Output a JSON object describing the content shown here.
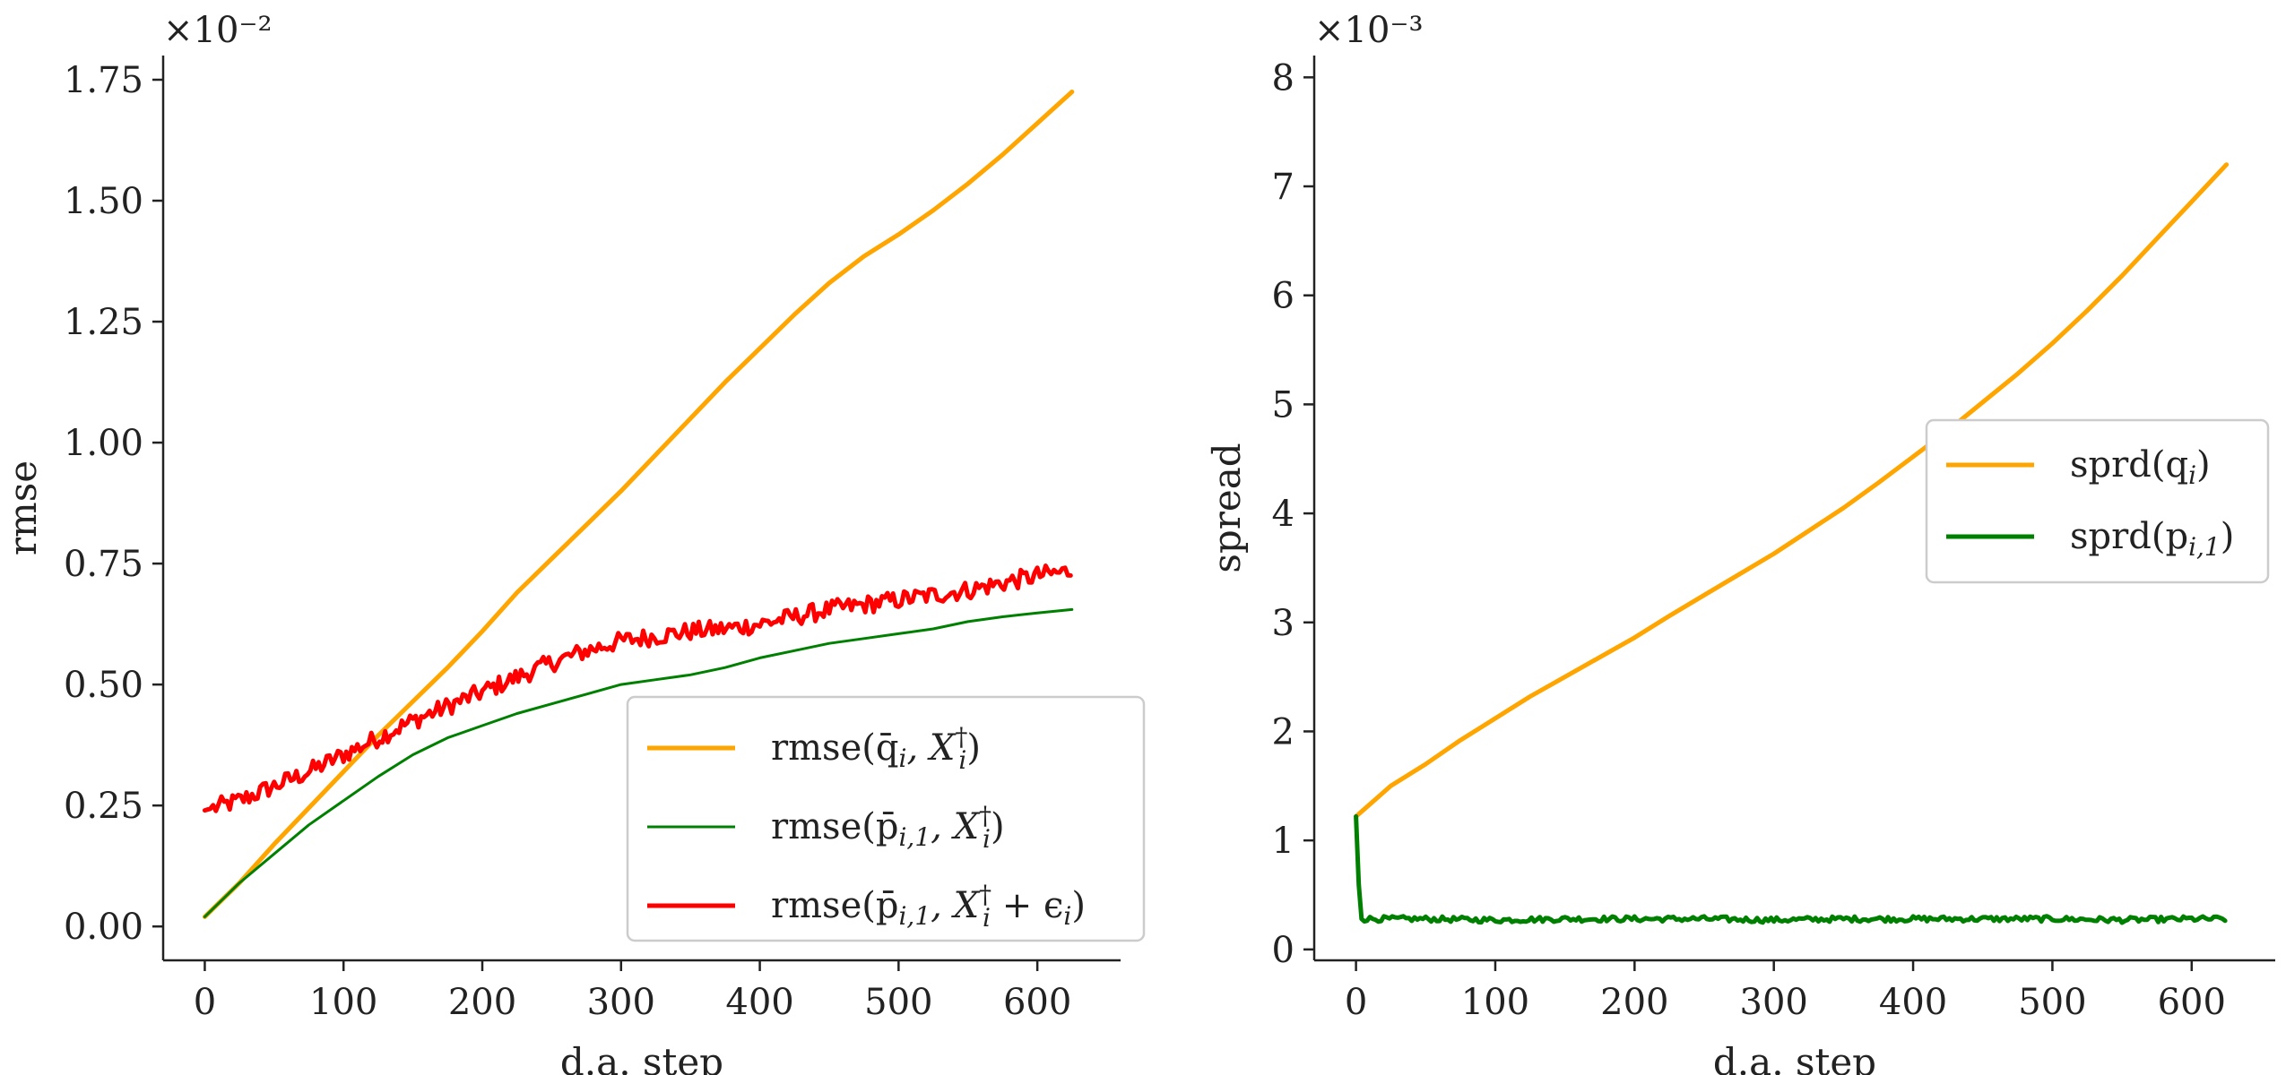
{
  "figure": {
    "colors": {
      "orange": "#FFA500",
      "green": "#008000",
      "red": "#FF0000",
      "axis": "#222222",
      "background": "#ffffff"
    }
  },
  "chart_data": [
    {
      "type": "line",
      "xlabel": "d.a. step",
      "ylabel": "rmse",
      "scale_label": "×10⁻²",
      "xlim": [
        -30,
        660
      ],
      "ylim": [
        -0.07,
        1.8
      ],
      "xticks": [
        "0",
        "100",
        "200",
        "300",
        "400",
        "500",
        "600"
      ],
      "yticks": [
        "0.00",
        "0.25",
        "0.50",
        "0.75",
        "1.00",
        "1.25",
        "1.50",
        "1.75"
      ],
      "legend_position": "lower right",
      "grid": false,
      "series": [
        {
          "name": "rmse(q̄ᵢ, Xᵢ†)",
          "color": "#FFA500",
          "width": "thick",
          "x": [
            0,
            25,
            50,
            75,
            100,
            125,
            150,
            175,
            200,
            225,
            250,
            275,
            300,
            325,
            350,
            375,
            400,
            425,
            450,
            475,
            500,
            525,
            550,
            575,
            600,
            625
          ],
          "y": [
            0.02,
            0.09,
            0.17,
            0.245,
            0.32,
            0.395,
            0.465,
            0.535,
            0.61,
            0.69,
            0.76,
            0.83,
            0.9,
            0.975,
            1.05,
            1.125,
            1.195,
            1.265,
            1.33,
            1.385,
            1.43,
            1.48,
            1.535,
            1.595,
            1.66,
            1.725
          ]
        },
        {
          "name": "rmse(p̄ᵢ,₁, Xᵢ†)",
          "color": "#008000",
          "width": "thin",
          "x": [
            0,
            25,
            50,
            75,
            100,
            125,
            150,
            175,
            200,
            225,
            250,
            275,
            300,
            325,
            350,
            375,
            400,
            425,
            450,
            475,
            500,
            525,
            550,
            575,
            600,
            625
          ],
          "y": [
            0.02,
            0.09,
            0.15,
            0.21,
            0.26,
            0.31,
            0.355,
            0.39,
            0.415,
            0.44,
            0.46,
            0.48,
            0.5,
            0.51,
            0.52,
            0.535,
            0.555,
            0.57,
            0.585,
            0.595,
            0.605,
            0.615,
            0.63,
            0.64,
            0.648,
            0.655
          ]
        },
        {
          "name": "rmse(p̄ᵢ,₁, Xᵢ† + εᵢ)",
          "color": "#FF0000",
          "width": "thick",
          "noise": 0.012,
          "x": [
            0,
            25,
            50,
            75,
            100,
            125,
            150,
            175,
            200,
            225,
            250,
            275,
            300,
            325,
            350,
            375,
            400,
            425,
            450,
            475,
            500,
            525,
            550,
            575,
            600,
            625
          ],
          "y": [
            0.24,
            0.26,
            0.29,
            0.32,
            0.355,
            0.39,
            0.425,
            0.455,
            0.485,
            0.515,
            0.545,
            0.57,
            0.59,
            0.6,
            0.61,
            0.615,
            0.625,
            0.64,
            0.655,
            0.665,
            0.675,
            0.685,
            0.695,
            0.71,
            0.725,
            0.735
          ]
        }
      ],
      "legend": [
        {
          "label_main": "rmse(q̄",
          "sub": "i",
          "comma": ", X",
          "sup": "†",
          "sub2": "i",
          "tail": ")",
          "color": "#FFA500"
        },
        {
          "label_main": "rmse(p̄",
          "sub": "i,1",
          "comma": ", X",
          "sup": "†",
          "sub2": "i",
          "tail": ")",
          "color": "#008000"
        },
        {
          "label_main": "rmse(p̄",
          "sub": "i,1",
          "comma": ", X",
          "sup": "†",
          "sub2": "i",
          "tail": " + ϵ",
          "tail_sub": "i",
          "tail_end": ")",
          "color": "#FF0000"
        }
      ]
    },
    {
      "type": "line",
      "xlabel": "d.a. step",
      "ylabel": "spread",
      "scale_label": "×10⁻³",
      "xlim": [
        -30,
        660
      ],
      "ylim": [
        -0.1,
        8.2
      ],
      "xticks": [
        "0",
        "100",
        "200",
        "300",
        "400",
        "500",
        "600"
      ],
      "yticks": [
        "0",
        "1",
        "2",
        "3",
        "4",
        "5",
        "6",
        "7",
        "8"
      ],
      "legend_position": "center right",
      "grid": false,
      "series": [
        {
          "name": "sprd(qᵢ)",
          "color": "#FFA500",
          "width": "thick",
          "x": [
            0,
            25,
            50,
            75,
            100,
            125,
            150,
            175,
            200,
            225,
            250,
            275,
            300,
            325,
            350,
            375,
            400,
            425,
            450,
            475,
            500,
            525,
            550,
            575,
            600,
            625
          ],
          "y": [
            1.22,
            1.5,
            1.7,
            1.92,
            2.12,
            2.32,
            2.5,
            2.68,
            2.86,
            3.06,
            3.25,
            3.44,
            3.63,
            3.84,
            4.05,
            4.28,
            4.52,
            4.76,
            5.02,
            5.28,
            5.56,
            5.86,
            6.18,
            6.52,
            6.86,
            7.2
          ]
        },
        {
          "name": "sprd(pᵢ,₁)",
          "color": "#008000",
          "width": "thick",
          "noise": 0.025,
          "x": [
            0,
            3,
            5,
            50,
            100,
            150,
            200,
            250,
            300,
            350,
            400,
            450,
            500,
            550,
            600,
            625
          ],
          "y": [
            1.22,
            0.28,
            0.28,
            0.28,
            0.27,
            0.28,
            0.28,
            0.28,
            0.27,
            0.28,
            0.28,
            0.28,
            0.28,
            0.27,
            0.28,
            0.28
          ]
        }
      ],
      "legend": [
        {
          "label_main": "sprd(q",
          "sub": "i",
          "tail": ")",
          "color": "#FFA500"
        },
        {
          "label_main": "sprd(p",
          "sub": "i,1",
          "tail": ")",
          "color": "#008000"
        }
      ]
    }
  ]
}
